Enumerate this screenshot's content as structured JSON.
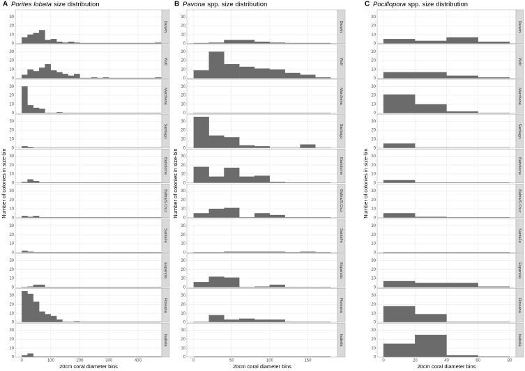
{
  "chart_data": [
    {
      "type": "histogram",
      "panel_label": "A",
      "title_species": "Porites lobata",
      "title_suffix": "size distribution",
      "xlabel": "20cm coral diameter bins",
      "ylabel": "Number of colonies in size-bin",
      "bins": [
        0,
        20,
        40,
        60,
        80,
        100,
        120,
        140,
        160,
        180,
        200,
        220,
        240,
        260,
        280,
        300,
        320,
        340,
        360,
        380,
        400,
        420,
        440,
        460,
        480
      ],
      "xlim": [
        -22,
        482
      ],
      "xticks": [
        0,
        100,
        200,
        300,
        400
      ],
      "ylim": [
        0,
        38
      ],
      "yticks": [
        0,
        10,
        20,
        30
      ],
      "color": "#6b6b6b",
      "facets": [
        {
          "name": "Darwin",
          "values": [
            7,
            10,
            12,
            15,
            4,
            5,
            2,
            1,
            2,
            1,
            0,
            0,
            0,
            0,
            0,
            0,
            0,
            0,
            0,
            0,
            0,
            0,
            0,
            1
          ]
        },
        {
          "name": "Wolf",
          "values": [
            4,
            10,
            8,
            12,
            16,
            9,
            7,
            5,
            3,
            5,
            0,
            0,
            1,
            0,
            1,
            0,
            0,
            0,
            0,
            0,
            0,
            0,
            0,
            1
          ]
        },
        {
          "name": "Marchena",
          "values": [
            30,
            9,
            6,
            5,
            0,
            0,
            1,
            0,
            0,
            0,
            0,
            0,
            0,
            0,
            0,
            0,
            0,
            0,
            0,
            0,
            0,
            0,
            0,
            0
          ]
        },
        {
          "name": "Santiago",
          "values": [
            2,
            1,
            0,
            0,
            0,
            0,
            0,
            0,
            0,
            0,
            0,
            0,
            0,
            0,
            0,
            0,
            0,
            0,
            0,
            0,
            0,
            0,
            0,
            0
          ]
        },
        {
          "name": "Bartolome",
          "values": [
            1,
            4,
            2,
            0,
            0,
            0,
            0,
            0,
            0,
            0,
            0,
            0,
            0,
            0,
            0,
            0,
            0,
            0,
            0,
            0,
            0,
            0,
            0,
            0
          ]
        },
        {
          "name": "Baltra/S.Cruz",
          "values": [
            2,
            1,
            2,
            0,
            0,
            0,
            0,
            0,
            0,
            0,
            0,
            0,
            0,
            0,
            0,
            0,
            0,
            0,
            0,
            0,
            0,
            0,
            0,
            0
          ]
        },
        {
          "name": "SantaFe",
          "values": [
            2,
            1,
            0,
            0,
            0,
            0,
            0,
            0,
            0,
            0,
            0,
            0,
            0,
            0,
            0,
            0,
            0,
            0,
            0,
            0,
            0,
            0,
            0,
            0
          ]
        },
        {
          "name": "Espanola",
          "values": [
            0,
            1,
            3,
            3,
            0,
            0,
            0,
            0,
            0,
            0,
            0,
            0,
            0,
            0,
            0,
            0,
            0,
            0,
            0,
            0,
            0,
            0,
            0,
            0
          ]
        },
        {
          "name": "Floreana",
          "values": [
            35,
            32,
            23,
            12,
            9,
            7,
            3,
            0,
            0,
            1,
            0,
            0,
            0,
            0,
            0,
            0,
            0,
            0,
            0,
            0,
            0,
            0,
            0,
            0
          ]
        },
        {
          "name": "Isabela",
          "values": [
            2,
            4,
            0,
            0,
            0,
            0,
            0,
            0,
            0,
            0,
            0,
            0,
            0,
            0,
            0,
            0,
            0,
            0,
            0,
            0,
            0,
            0,
            0,
            0
          ]
        }
      ]
    },
    {
      "type": "histogram",
      "panel_label": "B",
      "title_species": "Pavona",
      "title_suffix": "spp. size distribution",
      "xlabel": "20cm coral diameter bins",
      "ylabel": "Number of colonies in size-bin",
      "bins": [
        0,
        20,
        40,
        60,
        80,
        100,
        120,
        140,
        160,
        180
      ],
      "xlim": [
        -9,
        189
      ],
      "xticks": [
        0,
        50,
        100,
        150
      ],
      "ylim": [
        0,
        38
      ],
      "yticks": [
        0,
        10,
        20,
        30
      ],
      "color": "#6b6b6b",
      "facets": [
        {
          "name": "Darwin",
          "values": [
            0,
            1,
            4,
            4,
            2,
            1,
            0,
            0,
            0
          ]
        },
        {
          "name": "Wolf",
          "values": [
            9,
            30,
            16,
            13,
            11,
            10,
            6,
            4,
            1
          ]
        },
        {
          "name": "Marchena",
          "values": [
            0,
            0,
            0,
            0,
            0,
            0,
            0,
            0,
            0
          ]
        },
        {
          "name": "Santiago",
          "values": [
            35,
            14,
            12,
            3,
            2,
            0,
            0,
            4,
            0
          ]
        },
        {
          "name": "Bartolome",
          "values": [
            18,
            7,
            17,
            7,
            8,
            1,
            0,
            0,
            0
          ]
        },
        {
          "name": "Baltra/S.Cruz",
          "values": [
            5,
            10,
            11,
            0,
            5,
            3,
            0,
            0,
            0
          ]
        },
        {
          "name": "SantaFe",
          "values": [
            0,
            0,
            1,
            1,
            1,
            1,
            0,
            1,
            0
          ]
        },
        {
          "name": "Espanola",
          "values": [
            6,
            12,
            11,
            0,
            1,
            3,
            0,
            0,
            0
          ]
        },
        {
          "name": "Floreana",
          "values": [
            0,
            8,
            3,
            4,
            3,
            3,
            0,
            0,
            0
          ]
        },
        {
          "name": "Isabela",
          "values": [
            0,
            0,
            0,
            0,
            0,
            0,
            0,
            0,
            0
          ]
        }
      ]
    },
    {
      "type": "histogram",
      "panel_label": "C",
      "title_species": "Pocillopora",
      "title_suffix": "spp. size distribution",
      "xlabel": "20cm coral diameter bins",
      "ylabel": "Number of colonies in size-bin",
      "bins": [
        0,
        20,
        40,
        60,
        80
      ],
      "xlim": [
        -4,
        84
      ],
      "xticks": [
        0,
        20,
        40,
        60,
        80
      ],
      "ylim": [
        0,
        38
      ],
      "yticks": [
        0,
        10,
        20,
        30
      ],
      "color": "#6b6b6b",
      "facets": [
        {
          "name": "Darwin",
          "values": [
            5,
            3,
            7,
            2
          ]
        },
        {
          "name": "Wolf",
          "values": [
            7,
            7,
            3,
            1
          ]
        },
        {
          "name": "Marchena",
          "values": [
            21,
            10,
            2,
            0
          ]
        },
        {
          "name": "Santiago",
          "values": [
            5,
            0,
            0,
            0
          ]
        },
        {
          "name": "Bartolome",
          "values": [
            3,
            0,
            0,
            0
          ]
        },
        {
          "name": "Baltra/S.Cruz",
          "values": [
            5,
            1,
            0,
            0
          ]
        },
        {
          "name": "SantaFe",
          "values": [
            0,
            0,
            0,
            0
          ]
        },
        {
          "name": "Espanola",
          "values": [
            7,
            5,
            5,
            1
          ]
        },
        {
          "name": "Floreana",
          "values": [
            18,
            9,
            0,
            0
          ]
        },
        {
          "name": "Isabela",
          "values": [
            15,
            25,
            2,
            0
          ]
        }
      ]
    }
  ]
}
